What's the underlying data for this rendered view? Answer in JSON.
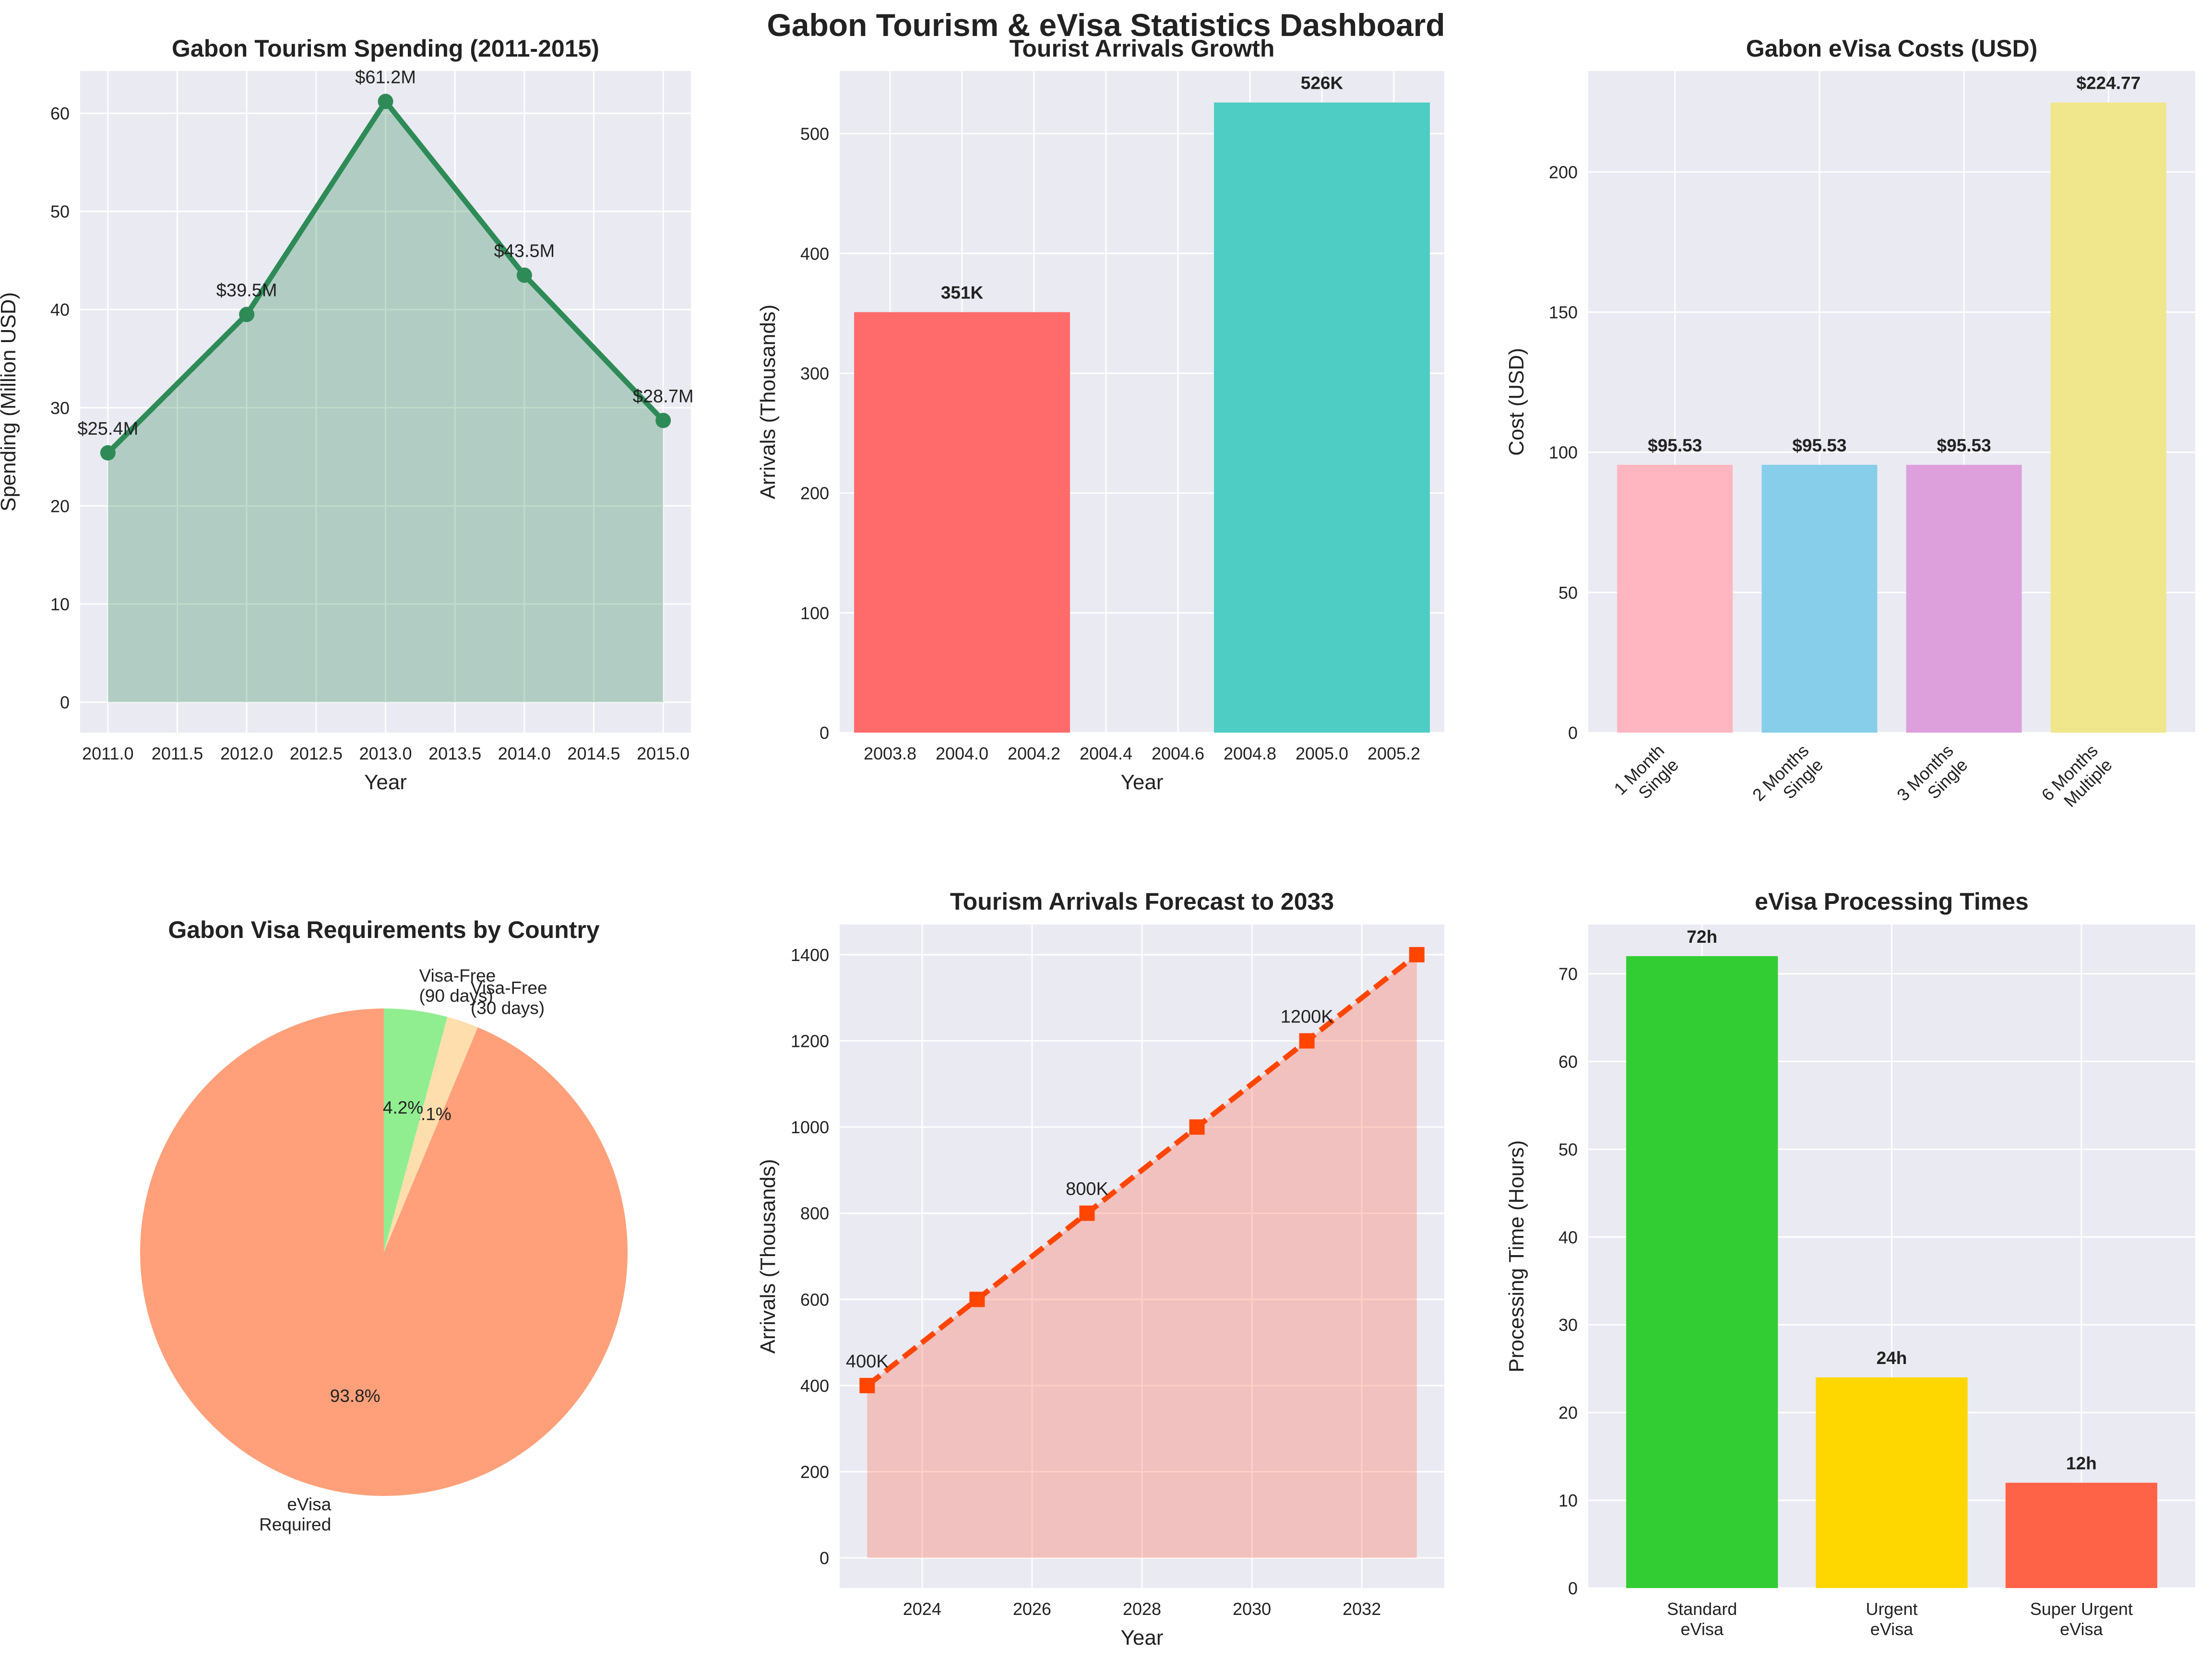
{
  "dashboard": {
    "title": "Gabon Tourism & eVisa Statistics Dashboard"
  },
  "colors": {
    "background": "#eaeaf2",
    "grid": "#ffffff",
    "text": "#222222"
  },
  "chart_data": [
    {
      "id": "spending",
      "type": "area",
      "title": "Gabon Tourism Spending (2011-2015)",
      "xlabel": "Year",
      "ylabel": "Spending (Million USD)",
      "x": [
        2011,
        2012,
        2013,
        2014,
        2015
      ],
      "values": [
        25.4,
        39.5,
        61.2,
        43.5,
        28.7
      ],
      "point_labels": [
        "$25.4M",
        "$39.5M",
        "$61.2M",
        "$43.5M",
        "$28.7M"
      ],
      "xlim": [
        2010.8,
        2015.2
      ],
      "ylim": [
        -3.1,
        64.3
      ],
      "xticks": [
        2011.0,
        2011.5,
        2012.0,
        2012.5,
        2013.0,
        2013.5,
        2014.0,
        2014.5,
        2015.0
      ],
      "xtick_labels": [
        "2011.0",
        "2011.5",
        "2012.0",
        "2012.5",
        "2013.0",
        "2013.5",
        "2014.0",
        "2014.5",
        "2015.0"
      ],
      "yticks": [
        0,
        10,
        20,
        30,
        40,
        50,
        60
      ],
      "ytick_labels": [
        "0",
        "10",
        "20",
        "30",
        "40",
        "50",
        "60"
      ],
      "line_color": "#2e8b57",
      "fill_color": "#2e8b57",
      "marker": "circle",
      "grid": true
    },
    {
      "id": "arrivals",
      "type": "bar",
      "title": "Tourist Arrivals Growth",
      "xlabel": "Year",
      "ylabel": "Arrivals (Thousands)",
      "x": [
        2004,
        2005
      ],
      "values": [
        351,
        526
      ],
      "bar_labels": [
        "351K",
        "526K"
      ],
      "bar_width": 0.6,
      "bar_colors": [
        "#ff6b6b",
        "#4ecdc4"
      ],
      "xlim": [
        2003.66,
        2005.34
      ],
      "ylim": [
        0,
        552.3
      ],
      "xticks": [
        2003.8,
        2004.0,
        2004.2,
        2004.4,
        2004.6,
        2004.8,
        2005.0,
        2005.2
      ],
      "xtick_labels": [
        "2003.8",
        "2004.0",
        "2004.2",
        "2004.4",
        "2004.6",
        "2004.8",
        "2005.0",
        "2005.2"
      ],
      "yticks": [
        0,
        100,
        200,
        300,
        400,
        500
      ],
      "ytick_labels": [
        "0",
        "100",
        "200",
        "300",
        "400",
        "500"
      ],
      "grid": true
    },
    {
      "id": "costs",
      "type": "bar",
      "title": "Gabon eVisa Costs (USD)",
      "xlabel": "",
      "ylabel": "Cost (USD)",
      "categories": [
        [
          "1 Month",
          "Single"
        ],
        [
          "2 Months",
          "Single"
        ],
        [
          "3 Months",
          "Single"
        ],
        [
          "6 Months",
          "Multiple"
        ]
      ],
      "values": [
        95.53,
        95.53,
        95.53,
        224.77
      ],
      "bar_labels": [
        "$95.53",
        "$95.53",
        "$95.53",
        "$224.77"
      ],
      "bar_width": 0.8,
      "bar_colors": [
        "#ffb6c1",
        "#87ceeb",
        "#dda0dd",
        "#f0e68c"
      ],
      "xlim": [
        -0.6,
        3.6
      ],
      "ylim": [
        0,
        236
      ],
      "yticks": [
        0,
        50,
        100,
        150,
        200
      ],
      "ytick_labels": [
        "0",
        "50",
        "100",
        "150",
        "200"
      ],
      "rotate_xticks": 45,
      "grid": true
    },
    {
      "id": "visa_req",
      "type": "pie",
      "title": "Gabon Visa Requirements by Country",
      "labels": [
        [
          "eVisa",
          "Required"
        ],
        [
          "Visa-Free",
          "(30 days)"
        ],
        [
          "Visa-Free",
          "(90 days)"
        ]
      ],
      "values": [
        93.8,
        2.1,
        4.2
      ],
      "pct_labels": [
        "93.8%",
        "2.1%",
        "4.2%"
      ],
      "colors": [
        "#ffa07a",
        "#ffdead",
        "#90ee90"
      ],
      "start_angle": 90
    },
    {
      "id": "forecast",
      "type": "line",
      "title": "Tourism Arrivals Forecast to 2033",
      "xlabel": "Year",
      "ylabel": "Arrivals (Thousands)",
      "x": [
        2023,
        2025,
        2027,
        2029,
        2031,
        2033
      ],
      "values": [
        400,
        600,
        800,
        1000,
        1200,
        1400
      ],
      "point_labels": [
        "400K",
        "",
        "800K",
        "",
        "1200K",
        ""
      ],
      "xlim": [
        2022.5,
        2033.5
      ],
      "ylim": [
        -70,
        1470
      ],
      "xticks": [
        2024,
        2026,
        2028,
        2030,
        2032
      ],
      "xtick_labels": [
        "2024",
        "2026",
        "2028",
        "2030",
        "2032"
      ],
      "yticks": [
        0,
        200,
        400,
        600,
        800,
        1000,
        1200,
        1400
      ],
      "ytick_labels": [
        "0",
        "200",
        "400",
        "600",
        "800",
        "1000",
        "1200",
        "1400"
      ],
      "line_color": "#ff4500",
      "fill_color": "#ff6347",
      "line_style": "dashed",
      "marker": "square",
      "grid": true
    },
    {
      "id": "processing",
      "type": "bar",
      "title": "eVisa Processing Times",
      "xlabel": "",
      "ylabel": "Processing Time (Hours)",
      "categories": [
        [
          "Standard",
          "eVisa"
        ],
        [
          "Urgent",
          "eVisa"
        ],
        [
          "Super Urgent",
          "eVisa"
        ]
      ],
      "values": [
        72,
        24,
        12
      ],
      "bar_labels": [
        "72h",
        "24h",
        "12h"
      ],
      "bar_width": 0.8,
      "bar_colors": [
        "#32cd32",
        "#ffd700",
        "#ff6347"
      ],
      "xlim": [
        -0.6,
        2.6
      ],
      "ylim": [
        0,
        75.6
      ],
      "yticks": [
        0,
        10,
        20,
        30,
        40,
        50,
        60,
        70
      ],
      "ytick_labels": [
        "0",
        "10",
        "20",
        "30",
        "40",
        "50",
        "60",
        "70"
      ],
      "grid": true
    }
  ]
}
